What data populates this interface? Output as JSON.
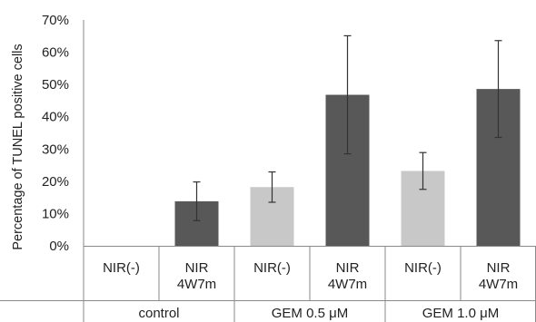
{
  "chart_data": {
    "type": "bar",
    "ylabel": "Percentage of TUNEL positive cells",
    "ylim": [
      0,
      70
    ],
    "yticks": [
      "0%",
      "10%",
      "20%",
      "30%",
      "40%",
      "50%",
      "60%",
      "70%"
    ],
    "categories": [
      {
        "line1": "NIR(-)",
        "line2": ""
      },
      {
        "line1": "NIR",
        "line2": "4W7m"
      },
      {
        "line1": "NIR(-)",
        "line2": ""
      },
      {
        "line1": "NIR",
        "line2": "4W7m"
      },
      {
        "line1": "NIR(-)",
        "line2": ""
      },
      {
        "line1": "NIR",
        "line2": "4W7m"
      }
    ],
    "groups": [
      "control",
      "GEM 0.5 μM",
      "GEM 1.0 μM"
    ],
    "values": [
      0,
      13.8,
      18.2,
      46.8,
      23.2,
      48.6
    ],
    "errors": [
      0,
      6,
      4.7,
      18.3,
      5.7,
      15
    ],
    "bar_colors": [
      "#c8c8c8",
      "#585858",
      "#c8c8c8",
      "#585858",
      "#c8c8c8",
      "#585858"
    ],
    "grid": false,
    "legend": "none"
  }
}
